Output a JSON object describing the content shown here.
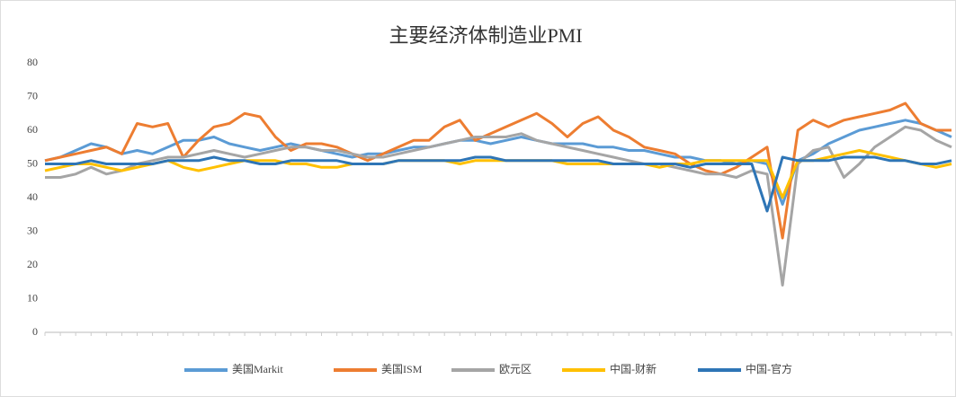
{
  "chart_data": {
    "type": "line",
    "title": "主要经济体制造业PMI",
    "categories": [
      null,
      null,
      null,
      null,
      null,
      null,
      null,
      null,
      null,
      null,
      null,
      null,
      null,
      null,
      null,
      null,
      null,
      null,
      null,
      null,
      null,
      null,
      null,
      null,
      null,
      null,
      null,
      null,
      null,
      null,
      null,
      null,
      null,
      null,
      null,
      null,
      null,
      null,
      null,
      null,
      null,
      null,
      null,
      null,
      null,
      null,
      null,
      null,
      null,
      null,
      null,
      null,
      null,
      null,
      null,
      null,
      null,
      null,
      null,
      null
    ],
    "ylim": [
      0,
      80
    ],
    "yticks": [
      0,
      10,
      20,
      30,
      40,
      50,
      60,
      70,
      80
    ],
    "grid": false,
    "legend": "bottom",
    "series": [
      {
        "name": "美国Markit",
        "color": "#5b9bd5",
        "values": [
          51,
          52,
          54,
          56,
          55,
          53,
          54,
          53,
          55,
          57,
          57,
          58,
          56,
          55,
          54,
          55,
          56,
          55,
          54,
          53,
          52,
          53,
          53,
          54,
          55,
          55,
          56,
          57,
          57,
          56,
          57,
          58,
          57,
          56,
          56,
          56,
          55,
          55,
          54,
          54,
          53,
          52,
          52,
          51,
          51,
          50,
          51,
          50,
          38,
          51,
          53,
          56,
          58,
          60,
          61,
          62,
          63,
          62,
          60,
          58
        ]
      },
      {
        "name": "美国ISM",
        "color": "#ed7d31",
        "values": [
          51,
          52,
          53,
          54,
          55,
          53,
          62,
          61,
          62,
          52,
          57,
          61,
          62,
          65,
          64,
          58,
          54,
          56,
          56,
          55,
          53,
          51,
          53,
          55,
          57,
          57,
          61,
          63,
          57,
          59,
          61,
          63,
          65,
          62,
          58,
          62,
          64,
          60,
          58,
          55,
          54,
          53,
          50,
          48,
          47,
          49,
          52,
          55,
          28,
          60,
          63,
          61,
          63,
          64,
          65,
          66,
          68,
          62,
          60,
          60
        ]
      },
      {
        "name": "欧元区",
        "color": "#a5a5a5",
        "values": [
          46,
          46,
          47,
          49,
          47,
          48,
          50,
          51,
          52,
          52,
          53,
          54,
          53,
          52,
          53,
          54,
          55,
          55,
          54,
          54,
          53,
          52,
          52,
          53,
          54,
          55,
          56,
          57,
          58,
          58,
          58,
          59,
          57,
          56,
          55,
          54,
          53,
          52,
          51,
          50,
          50,
          49,
          48,
          47,
          47,
          46,
          48,
          47,
          14,
          50,
          54,
          55,
          46,
          50,
          55,
          58,
          61,
          60,
          57,
          55
        ]
      },
      {
        "name": "中国-财新",
        "color": "#ffc000",
        "values": [
          48,
          49,
          50,
          50,
          49,
          48,
          49,
          50,
          51,
          49,
          48,
          49,
          50,
          51,
          51,
          51,
          50,
          50,
          49,
          49,
          50,
          50,
          50,
          51,
          51,
          51,
          51,
          50,
          51,
          51,
          51,
          51,
          51,
          51,
          50,
          50,
          50,
          50,
          50,
          50,
          49,
          50,
          50,
          51,
          51,
          51,
          51,
          51,
          40,
          51,
          51,
          52,
          53,
          54,
          53,
          52,
          51,
          50,
          49,
          50
        ]
      },
      {
        "name": "中国-官方",
        "color": "#2e75b6",
        "values": [
          50,
          50,
          50,
          51,
          50,
          50,
          50,
          50,
          51,
          51,
          51,
          52,
          51,
          51,
          50,
          50,
          51,
          51,
          51,
          51,
          50,
          50,
          50,
          51,
          51,
          51,
          51,
          51,
          52,
          52,
          51,
          51,
          51,
          51,
          51,
          51,
          51,
          50,
          50,
          50,
          50,
          50,
          49,
          50,
          50,
          50,
          50,
          36,
          52,
          51,
          51,
          51,
          52,
          52,
          52,
          51,
          51,
          50,
          50,
          51
        ]
      }
    ]
  }
}
